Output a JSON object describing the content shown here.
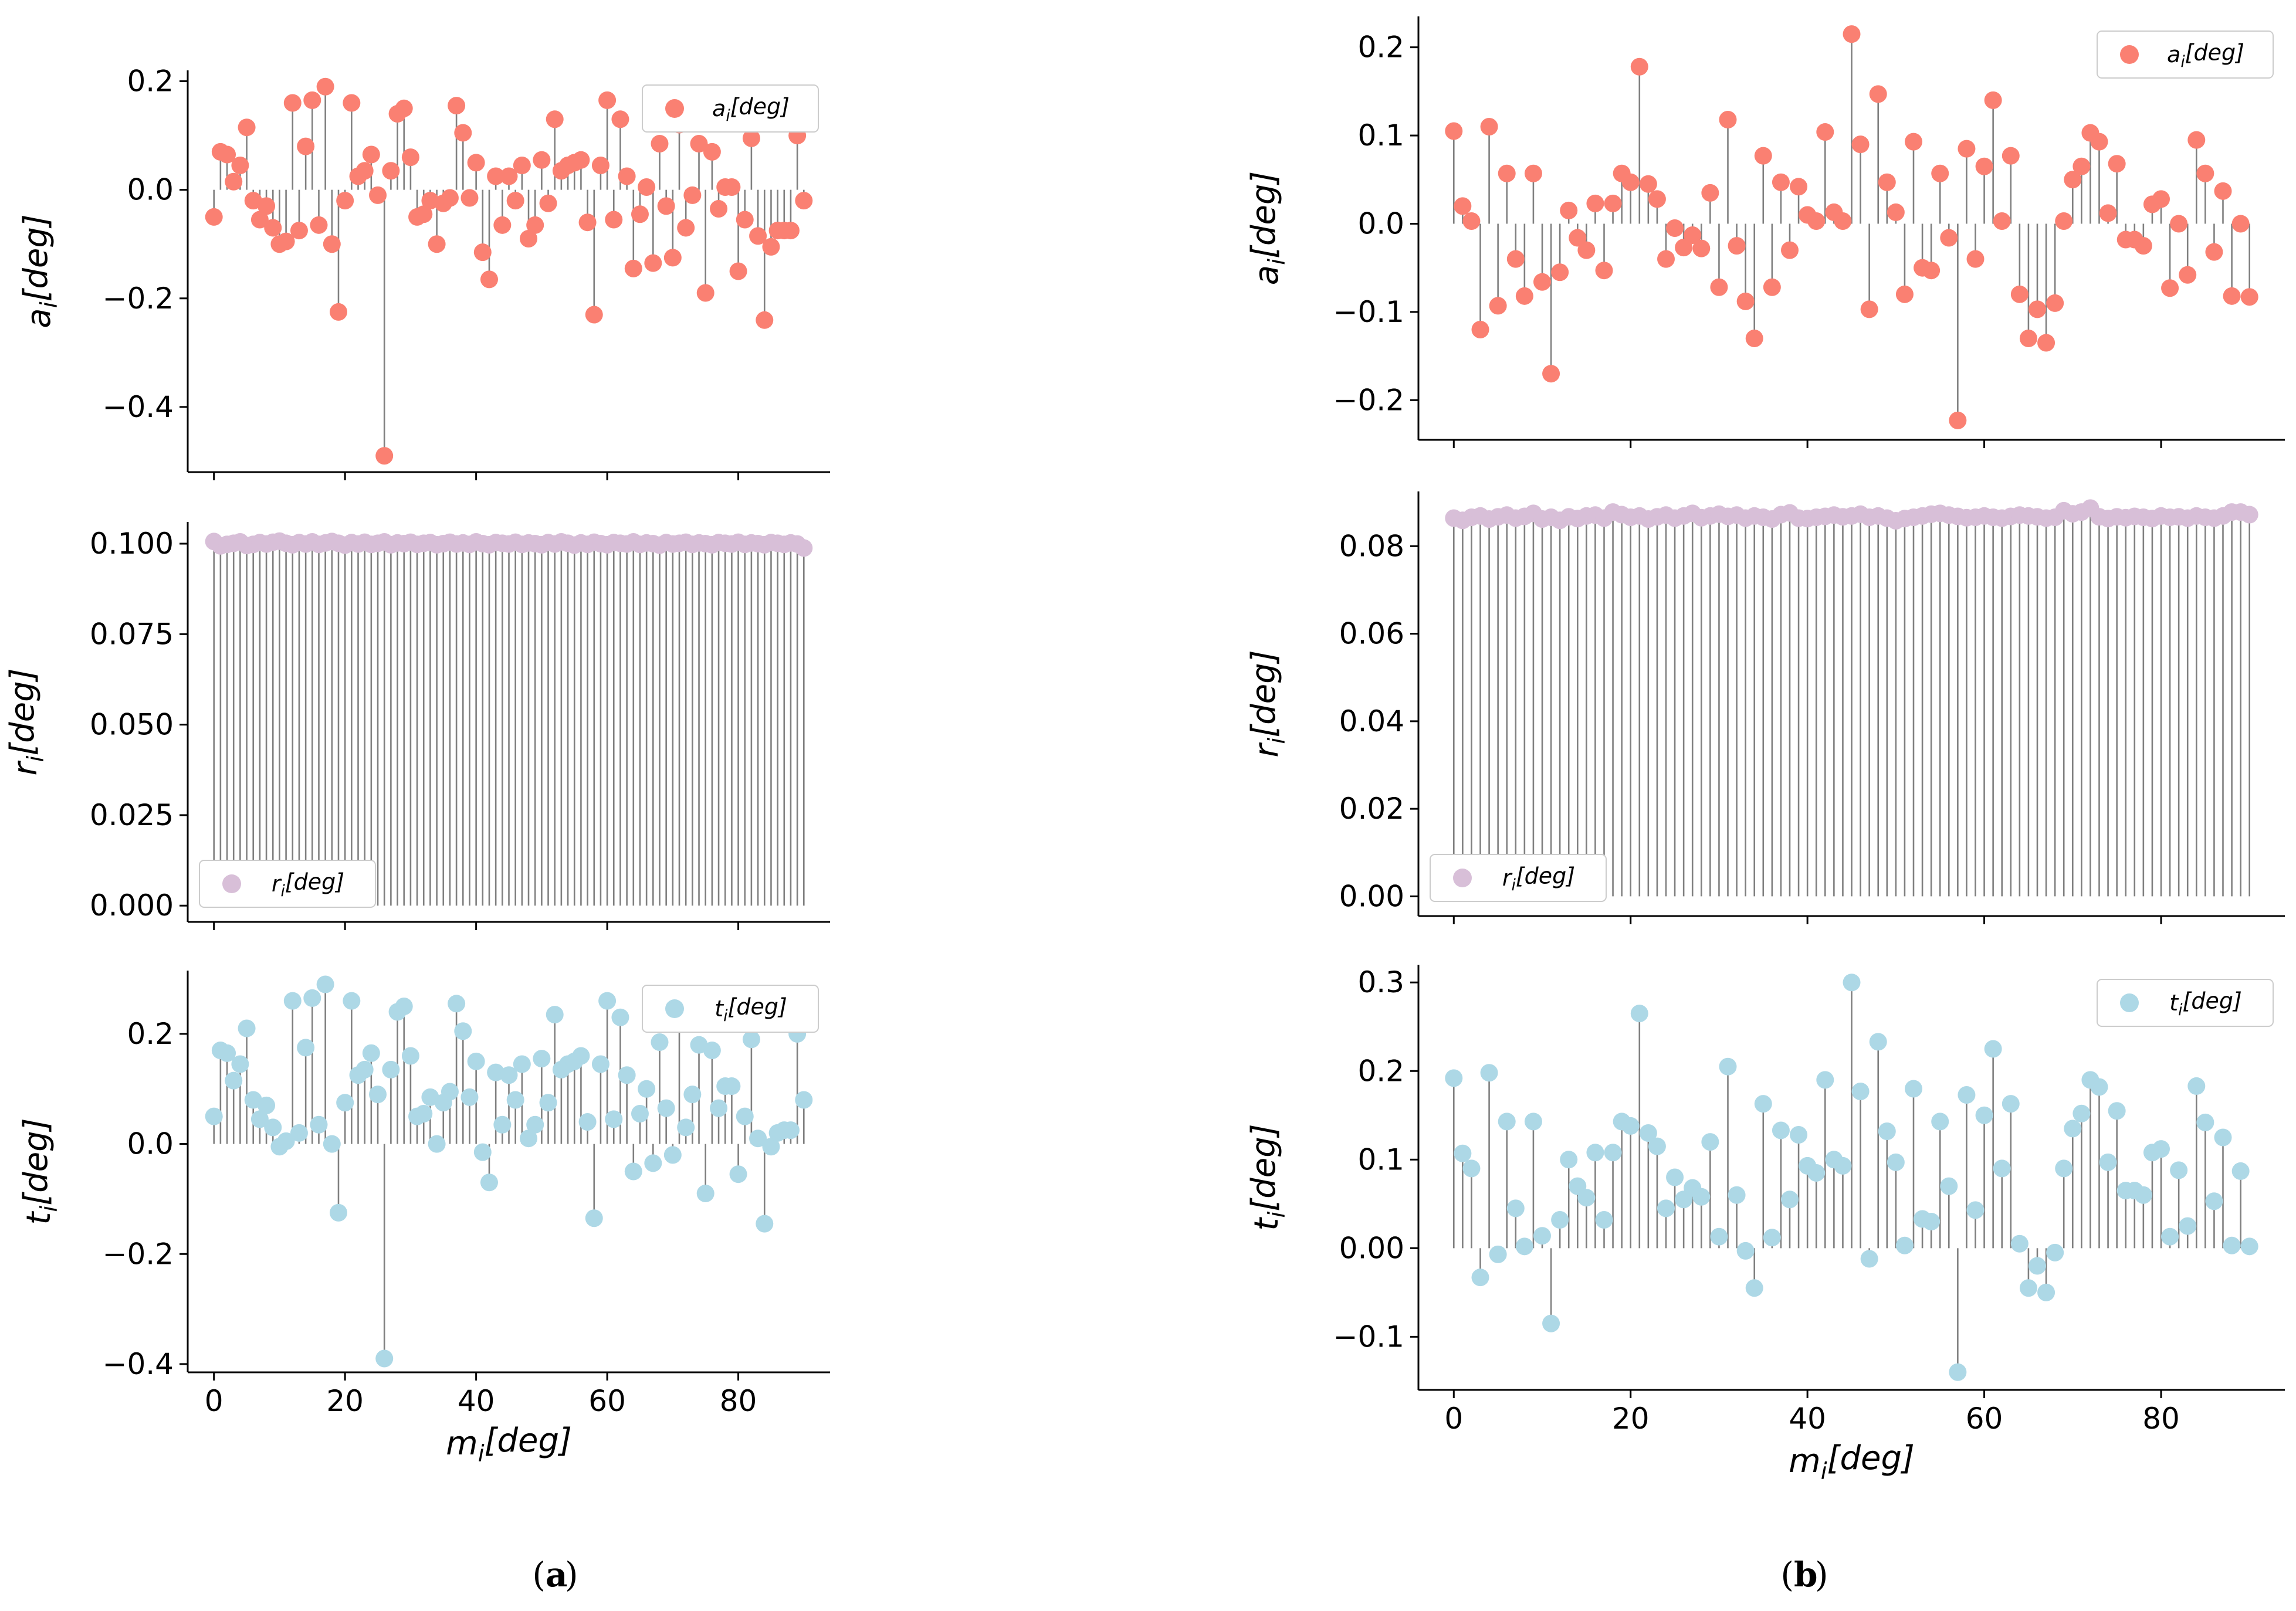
{
  "colors": {
    "a": "#fa8072",
    "r": "#d8bfd8",
    "t": "#add8e6",
    "stem": "#808080",
    "axis": "#000000"
  },
  "panel_labels": {
    "a_open": "(",
    "a": "a",
    "a_close": ")",
    "b_open": "(",
    "b": "b",
    "b_close": ")"
  },
  "chart_data": [
    {
      "id": "a-top",
      "type": "stem",
      "title": "",
      "xlabel": "",
      "ylabel": "a_i[deg]",
      "legend": "a_i[deg]",
      "legend_loc": "upper right",
      "color_key": "a",
      "ylim": [
        -0.52,
        0.22
      ],
      "xlim": [
        -4,
        94
      ],
      "yticks": [
        -0.4,
        -0.2,
        0.0,
        0.2
      ],
      "ytick_labels": [
        "−0.4",
        "−0.2",
        "0.0",
        "0.2"
      ],
      "xticks": [
        0,
        20,
        40,
        60,
        80
      ],
      "xtick_labels": [],
      "x_start": 0,
      "values": [
        -0.05,
        0.07,
        0.065,
        0.015,
        0.045,
        0.115,
        -0.02,
        -0.055,
        -0.03,
        -0.07,
        -0.1,
        -0.095,
        0.16,
        -0.075,
        0.08,
        0.165,
        -0.065,
        0.19,
        -0.1,
        -0.225,
        -0.02,
        0.16,
        0.025,
        0.035,
        0.065,
        -0.01,
        -0.49,
        0.035,
        0.14,
        0.15,
        0.06,
        -0.05,
        -0.045,
        -0.02,
        -0.1,
        -0.025,
        -0.015,
        0.155,
        0.105,
        -0.015,
        0.05,
        -0.115,
        -0.165,
        0.025,
        -0.065,
        0.025,
        -0.02,
        0.045,
        -0.09,
        -0.065,
        0.055,
        -0.025,
        0.13,
        0.035,
        0.045,
        0.05,
        0.055,
        -0.06,
        -0.23,
        0.045,
        0.165,
        -0.055,
        0.13,
        0.025,
        -0.145,
        -0.045,
        0.005,
        -0.135,
        0.085,
        -0.03,
        -0.125,
        0.12,
        -0.07,
        -0.01,
        0.085,
        -0.19,
        0.07,
        -0.035,
        0.005,
        0.005,
        -0.15,
        -0.055,
        0.095,
        -0.085,
        -0.24,
        -0.105,
        -0.075,
        -0.075,
        -0.075,
        0.1,
        -0.02
      ]
    },
    {
      "id": "a-mid",
      "type": "stem",
      "title": "",
      "xlabel": "",
      "ylabel": "r_i[deg]",
      "legend": "r_i[deg]",
      "legend_loc": "lower left",
      "color_key": "r",
      "ylim": [
        -0.0045,
        0.106
      ],
      "xlim": [
        -4,
        94
      ],
      "yticks": [
        0.0,
        0.025,
        0.05,
        0.075,
        0.1
      ],
      "ytick_labels": [
        "0.000",
        "0.025",
        "0.050",
        "0.075",
        "0.100"
      ],
      "xticks": [
        0,
        20,
        40,
        60,
        80
      ],
      "xtick_labels": [],
      "x_start": 0,
      "values": [
        0.1006,
        0.0994,
        0.0998,
        0.1001,
        0.1005,
        0.0995,
        0.0998,
        0.1003,
        0.0999,
        0.1004,
        0.1007,
        0.1001,
        0.0997,
        0.1003,
        0.0999,
        0.1005,
        0.0998,
        0.1002,
        0.1006,
        0.1001,
        0.0996,
        0.1003,
        0.0999,
        0.1004,
        0.0998,
        0.1001,
        0.1005,
        0.0997,
        0.1002,
        0.1,
        0.1004,
        0.0998,
        0.1001,
        0.1003,
        0.0997,
        0.1,
        0.1004,
        0.0999,
        0.1002,
        0.0998,
        0.1005,
        0.1,
        0.0997,
        0.1003,
        0.1001,
        0.0999,
        0.1004,
        0.0998,
        0.1002,
        0.1,
        0.0997,
        0.1003,
        0.0999,
        0.1005,
        0.1001,
        0.0996,
        0.1002,
        0.0998,
        0.1004,
        0.1,
        0.0997,
        0.1003,
        0.1001,
        0.0999,
        0.1005,
        0.0998,
        0.1002,
        0.1,
        0.0996,
        0.1003,
        0.0999,
        0.1001,
        0.1004,
        0.0998,
        0.1002,
        0.1,
        0.0997,
        0.1003,
        0.1001,
        0.0999,
        0.1004,
        0.0998,
        0.1002,
        0.1,
        0.0997,
        0.1003,
        0.1001,
        0.0998,
        0.1002,
        0.0999,
        0.0988
      ]
    },
    {
      "id": "a-bot",
      "type": "stem",
      "title": "",
      "xlabel": "m_i[deg]",
      "ylabel": "t_i[deg]",
      "legend": "t_i[deg]",
      "legend_loc": "upper right",
      "color_key": "t",
      "ylim": [
        -0.415,
        0.315
      ],
      "xlim": [
        -4,
        94
      ],
      "yticks": [
        -0.4,
        -0.2,
        0.0,
        0.2
      ],
      "ytick_labels": [
        "−0.4",
        "−0.2",
        "0.0",
        "0.2"
      ],
      "xticks": [
        0,
        20,
        40,
        60,
        80
      ],
      "xtick_labels": [
        "0",
        "20",
        "40",
        "60",
        "80"
      ],
      "x_start": 0,
      "values": [
        0.05,
        0.17,
        0.165,
        0.115,
        0.145,
        0.21,
        0.08,
        0.045,
        0.07,
        0.03,
        -0.005,
        0.005,
        0.26,
        0.02,
        0.175,
        0.265,
        0.035,
        0.29,
        0.0,
        -0.125,
        0.075,
        0.26,
        0.125,
        0.135,
        0.165,
        0.09,
        -0.39,
        0.135,
        0.24,
        0.25,
        0.16,
        0.05,
        0.055,
        0.085,
        0.0,
        0.075,
        0.095,
        0.255,
        0.205,
        0.085,
        0.15,
        -0.015,
        -0.07,
        0.13,
        0.035,
        0.125,
        0.08,
        0.145,
        0.01,
        0.035,
        0.155,
        0.075,
        0.235,
        0.135,
        0.145,
        0.15,
        0.16,
        0.04,
        -0.135,
        0.145,
        0.26,
        0.045,
        0.23,
        0.125,
        -0.05,
        0.055,
        0.1,
        -0.035,
        0.185,
        0.065,
        -0.02,
        0.22,
        0.03,
        0.09,
        0.18,
        -0.09,
        0.17,
        0.065,
        0.105,
        0.105,
        -0.055,
        0.05,
        0.19,
        0.01,
        -0.145,
        -0.005,
        0.02,
        0.025,
        0.025,
        0.2,
        0.08
      ]
    },
    {
      "id": "b-top",
      "type": "stem",
      "title": "",
      "xlabel": "",
      "ylabel": "a_i[deg]",
      "legend": "a_i[deg]",
      "legend_loc": "upper right",
      "color_key": "a",
      "ylim": [
        -0.245,
        0.235
      ],
      "xlim": [
        -4,
        94
      ],
      "yticks": [
        -0.2,
        -0.1,
        0.0,
        0.1,
        0.2
      ],
      "ytick_labels": [
        "−0.2",
        "−0.1",
        "0.0",
        "0.1",
        "0.2"
      ],
      "xticks": [
        0,
        20,
        40,
        60,
        80
      ],
      "xtick_labels": [],
      "x_start": 0,
      "values": [
        0.105,
        0.02,
        0.003,
        -0.12,
        0.11,
        -0.093,
        0.057,
        -0.04,
        -0.082,
        0.057,
        -0.066,
        -0.17,
        -0.055,
        0.015,
        -0.016,
        -0.03,
        0.023,
        -0.053,
        0.023,
        0.057,
        0.047,
        0.178,
        0.045,
        0.028,
        -0.04,
        -0.005,
        -0.027,
        -0.013,
        -0.028,
        0.035,
        -0.072,
        0.118,
        -0.025,
        -0.088,
        -0.13,
        0.077,
        -0.072,
        0.047,
        -0.03,
        0.042,
        0.01,
        0.003,
        0.104,
        0.013,
        0.003,
        0.215,
        0.09,
        -0.097,
        0.147,
        0.047,
        0.013,
        -0.08,
        0.093,
        -0.05,
        -0.053,
        0.057,
        -0.016,
        -0.223,
        0.085,
        -0.04,
        0.065,
        0.14,
        0.003,
        0.077,
        -0.08,
        -0.13,
        -0.097,
        -0.135,
        -0.09,
        0.003,
        0.05,
        0.065,
        0.103,
        0.093,
        0.012,
        0.068,
        -0.018,
        -0.018,
        -0.025,
        0.022,
        0.028,
        -0.073,
        0.0,
        -0.058,
        0.095,
        0.057,
        -0.032,
        0.037,
        -0.082,
        0.0,
        -0.083
      ]
    },
    {
      "id": "b-mid",
      "type": "stem",
      "title": "",
      "xlabel": "",
      "ylabel": "r_i[deg]",
      "legend": "r_i[deg]",
      "legend_loc": "lower left",
      "color_key": "r",
      "ylim": [
        -0.0045,
        0.0925
      ],
      "xlim": [
        -4,
        94
      ],
      "yticks": [
        0.0,
        0.02,
        0.04,
        0.06,
        0.08
      ],
      "ytick_labels": [
        "0.00",
        "0.02",
        "0.04",
        "0.06",
        "0.08"
      ],
      "xticks": [
        0,
        20,
        40,
        60,
        80
      ],
      "xtick_labels": [],
      "x_start": 0,
      "values": [
        0.0864,
        0.0859,
        0.0866,
        0.0869,
        0.0862,
        0.0867,
        0.0871,
        0.0864,
        0.0868,
        0.0875,
        0.0862,
        0.0866,
        0.0859,
        0.0867,
        0.0863,
        0.0869,
        0.0871,
        0.0864,
        0.0878,
        0.0872,
        0.0866,
        0.0869,
        0.0862,
        0.0867,
        0.0871,
        0.0864,
        0.0869,
        0.0875,
        0.0865,
        0.0869,
        0.0873,
        0.0868,
        0.0871,
        0.0864,
        0.0869,
        0.0866,
        0.0862,
        0.0872,
        0.0876,
        0.0864,
        0.0863,
        0.0866,
        0.0868,
        0.0871,
        0.0867,
        0.0869,
        0.0873,
        0.0866,
        0.0869,
        0.0864,
        0.0858,
        0.0863,
        0.0866,
        0.0869,
        0.0873,
        0.0875,
        0.0871,
        0.0868,
        0.0865,
        0.0866,
        0.0869,
        0.0866,
        0.0864,
        0.0868,
        0.0871,
        0.0869,
        0.0867,
        0.0864,
        0.0866,
        0.0881,
        0.0874,
        0.0878,
        0.0887,
        0.0867,
        0.0863,
        0.0867,
        0.0865,
        0.0868,
        0.0866,
        0.0863,
        0.0869,
        0.0866,
        0.0867,
        0.0864,
        0.0869,
        0.0866,
        0.0864,
        0.0869,
        0.0878,
        0.0878,
        0.0872
      ]
    },
    {
      "id": "b-bot",
      "type": "stem",
      "title": "",
      "xlabel": "m_i[deg]",
      "ylabel": "t_i[deg]",
      "legend": "t_i[deg]",
      "legend_loc": "upper right",
      "color_key": "t",
      "ylim": [
        -0.16,
        0.32
      ],
      "xlim": [
        -4,
        94
      ],
      "yticks": [
        -0.1,
        0.0,
        0.1,
        0.2,
        0.3
      ],
      "ytick_labels": [
        "−0.1",
        "0.00",
        "0.1",
        "0.2",
        "0.3"
      ],
      "xticks": [
        0,
        20,
        40,
        60,
        80
      ],
      "xtick_labels": [
        "0",
        "20",
        "40",
        "60",
        "80"
      ],
      "x_start": 0,
      "values": [
        0.192,
        0.107,
        0.09,
        -0.033,
        0.198,
        -0.007,
        0.143,
        0.045,
        0.002,
        0.143,
        0.014,
        -0.085,
        0.032,
        0.1,
        0.07,
        0.057,
        0.108,
        0.032,
        0.108,
        0.143,
        0.138,
        0.265,
        0.13,
        0.115,
        0.045,
        0.08,
        0.055,
        0.068,
        0.058,
        0.12,
        0.013,
        0.205,
        0.06,
        -0.003,
        -0.045,
        0.163,
        0.012,
        0.133,
        0.055,
        0.128,
        0.093,
        0.085,
        0.19,
        0.1,
        0.093,
        0.3,
        0.177,
        -0.012,
        0.233,
        0.132,
        0.097,
        0.003,
        0.18,
        0.033,
        0.03,
        0.143,
        0.07,
        -0.14,
        0.173,
        0.043,
        0.15,
        0.225,
        0.09,
        0.163,
        0.005,
        -0.045,
        -0.02,
        -0.05,
        -0.005,
        0.09,
        0.135,
        0.152,
        0.19,
        0.182,
        0.097,
        0.155,
        0.065,
        0.065,
        0.06,
        0.108,
        0.112,
        0.013,
        0.088,
        0.025,
        0.183,
        0.142,
        0.053,
        0.125,
        0.003,
        0.087,
        0.002
      ]
    }
  ]
}
